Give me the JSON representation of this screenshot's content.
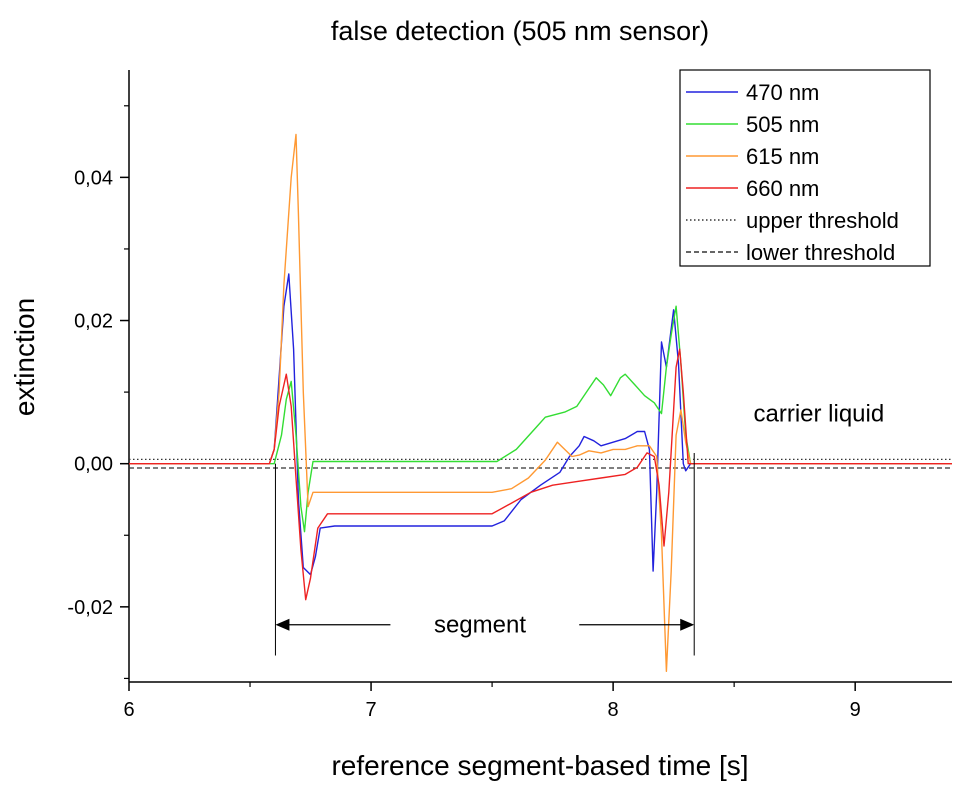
{
  "chart_data": {
    "type": "line",
    "title": "false detection (505 nm sensor)",
    "xlabel": "reference segment-based time [s]",
    "ylabel": "extinction",
    "xlim": [
      6,
      9.4
    ],
    "ylim": [
      -0.0305,
      0.055
    ],
    "grid": false,
    "legend_position": "top-right",
    "xticks": [
      6,
      7,
      8,
      9
    ],
    "xtick_labels": [
      "6",
      "7",
      "8",
      "9"
    ],
    "yticks": [
      -0.02,
      0,
      0.02,
      0.04
    ],
    "ytick_labels": [
      "-0,02",
      "0,00",
      "0,02",
      "0,04"
    ],
    "thresholds": [
      {
        "name": "upper threshold",
        "value": 0.0006,
        "style": "dotted"
      },
      {
        "name": "lower threshold",
        "value": -0.0006,
        "style": "dashed"
      }
    ],
    "series": [
      {
        "name": "470 nm",
        "color": "#2222dd",
        "points": [
          [
            6,
            0
          ],
          [
            6.58,
            0
          ],
          [
            6.6,
            0.002
          ],
          [
            6.62,
            0.012
          ],
          [
            6.64,
            0.022
          ],
          [
            6.66,
            0.0265
          ],
          [
            6.68,
            0.016
          ],
          [
            6.7,
            -0.005
          ],
          [
            6.72,
            -0.0145
          ],
          [
            6.75,
            -0.0155
          ],
          [
            6.77,
            -0.013
          ],
          [
            6.79,
            -0.009
          ],
          [
            6.85,
            -0.0087
          ],
          [
            7.0,
            -0.0087
          ],
          [
            7.5,
            -0.0087
          ],
          [
            7.55,
            -0.008
          ],
          [
            7.62,
            -0.005
          ],
          [
            7.7,
            -0.003
          ],
          [
            7.78,
            -0.0012
          ],
          [
            7.82,
            0.001
          ],
          [
            7.86,
            0.0025
          ],
          [
            7.88,
            0.0038
          ],
          [
            7.92,
            0.0032
          ],
          [
            7.95,
            0.0025
          ],
          [
            8.0,
            0.003
          ],
          [
            8.05,
            0.0035
          ],
          [
            8.1,
            0.0045
          ],
          [
            8.13,
            0.0045
          ],
          [
            8.15,
            0.002
          ],
          [
            8.165,
            -0.015
          ],
          [
            8.18,
            -0.004
          ],
          [
            8.2,
            0.017
          ],
          [
            8.22,
            0.0135
          ],
          [
            8.25,
            0.0215
          ],
          [
            8.27,
            0.014
          ],
          [
            8.29,
            0
          ],
          [
            8.3,
            -0.001
          ],
          [
            8.32,
            0
          ],
          [
            9.4,
            0
          ]
        ]
      },
      {
        "name": "505 nm",
        "color": "#33dd33",
        "points": [
          [
            6,
            0
          ],
          [
            6.6,
            0
          ],
          [
            6.63,
            0.004
          ],
          [
            6.65,
            0.009
          ],
          [
            6.67,
            0.0115
          ],
          [
            6.69,
            0.004
          ],
          [
            6.71,
            -0.006
          ],
          [
            6.725,
            -0.0095
          ],
          [
            6.74,
            -0.004
          ],
          [
            6.76,
            0.0003
          ],
          [
            7.0,
            0.0003
          ],
          [
            7.52,
            0.0003
          ],
          [
            7.6,
            0.002
          ],
          [
            7.68,
            0.005
          ],
          [
            7.72,
            0.0065
          ],
          [
            7.8,
            0.0072
          ],
          [
            7.85,
            0.008
          ],
          [
            7.9,
            0.0105
          ],
          [
            7.93,
            0.012
          ],
          [
            7.96,
            0.011
          ],
          [
            7.99,
            0.0095
          ],
          [
            8.03,
            0.012
          ],
          [
            8.05,
            0.0125
          ],
          [
            8.09,
            0.011
          ],
          [
            8.13,
            0.0095
          ],
          [
            8.17,
            0.0085
          ],
          [
            8.2,
            0.007
          ],
          [
            8.22,
            0.0135
          ],
          [
            8.24,
            0.018
          ],
          [
            8.26,
            0.022
          ],
          [
            8.28,
            0.014
          ],
          [
            8.3,
            0.004
          ],
          [
            8.32,
            0
          ],
          [
            9.4,
            0
          ]
        ]
      },
      {
        "name": "615 nm",
        "color": "#ff9933",
        "points": [
          [
            6,
            0
          ],
          [
            6.58,
            0
          ],
          [
            6.6,
            0.002
          ],
          [
            6.62,
            0.01
          ],
          [
            6.64,
            0.025
          ],
          [
            6.67,
            0.04
          ],
          [
            6.69,
            0.046
          ],
          [
            6.7,
            0.035
          ],
          [
            6.72,
            0.01
          ],
          [
            6.74,
            -0.006
          ],
          [
            6.76,
            -0.004
          ],
          [
            6.8,
            -0.004
          ],
          [
            7.0,
            -0.004
          ],
          [
            7.5,
            -0.004
          ],
          [
            7.58,
            -0.0035
          ],
          [
            7.65,
            -0.002
          ],
          [
            7.72,
            0.0005
          ],
          [
            7.77,
            0.003
          ],
          [
            7.8,
            0.002
          ],
          [
            7.83,
            0.001
          ],
          [
            7.86,
            0.0012
          ],
          [
            7.9,
            0.0018
          ],
          [
            7.95,
            0.0015
          ],
          [
            8.0,
            0.002
          ],
          [
            8.05,
            0.002
          ],
          [
            8.1,
            0.0025
          ],
          [
            8.15,
            0.0025
          ],
          [
            8.18,
            0.001
          ],
          [
            8.2,
            -0.01
          ],
          [
            8.22,
            -0.029
          ],
          [
            8.24,
            -0.015
          ],
          [
            8.26,
            0.004
          ],
          [
            8.28,
            0.0075
          ],
          [
            8.3,
            0.003
          ],
          [
            8.32,
            0
          ],
          [
            9.4,
            0
          ]
        ]
      },
      {
        "name": "660 nm",
        "color": "#ee2222",
        "points": [
          [
            6,
            0
          ],
          [
            6.58,
            0
          ],
          [
            6.6,
            0.002
          ],
          [
            6.62,
            0.008
          ],
          [
            6.65,
            0.0125
          ],
          [
            6.67,
            0.008
          ],
          [
            6.69,
            -0.002
          ],
          [
            6.71,
            -0.012
          ],
          [
            6.73,
            -0.019
          ],
          [
            6.75,
            -0.016
          ],
          [
            6.78,
            -0.009
          ],
          [
            6.82,
            -0.007
          ],
          [
            7.0,
            -0.007
          ],
          [
            7.5,
            -0.007
          ],
          [
            7.58,
            -0.0055
          ],
          [
            7.66,
            -0.004
          ],
          [
            7.75,
            -0.003
          ],
          [
            7.85,
            -0.0025
          ],
          [
            7.95,
            -0.002
          ],
          [
            8.05,
            -0.0015
          ],
          [
            8.1,
            -0.0005
          ],
          [
            8.14,
            0.0015
          ],
          [
            8.17,
            0.001
          ],
          [
            8.19,
            -0.003
          ],
          [
            8.21,
            -0.0115
          ],
          [
            8.23,
            -0.004
          ],
          [
            8.26,
            0.0135
          ],
          [
            8.275,
            0.016
          ],
          [
            8.29,
            0.01
          ],
          [
            8.31,
            0
          ],
          [
            9.4,
            0
          ]
        ]
      }
    ],
    "annotations": [
      {
        "text": "carrier liquid",
        "x": 8.85,
        "y": 0.007
      },
      {
        "text": "segment",
        "x": 7.45,
        "y": -0.0225
      }
    ],
    "segment_marker": {
      "start": 6.605,
      "end": 8.335,
      "arrow_y": -0.0225,
      "line_bottom": -0.0268,
      "start_line_top": 0,
      "end_line_top": 0.0015,
      "label": "segment"
    }
  }
}
